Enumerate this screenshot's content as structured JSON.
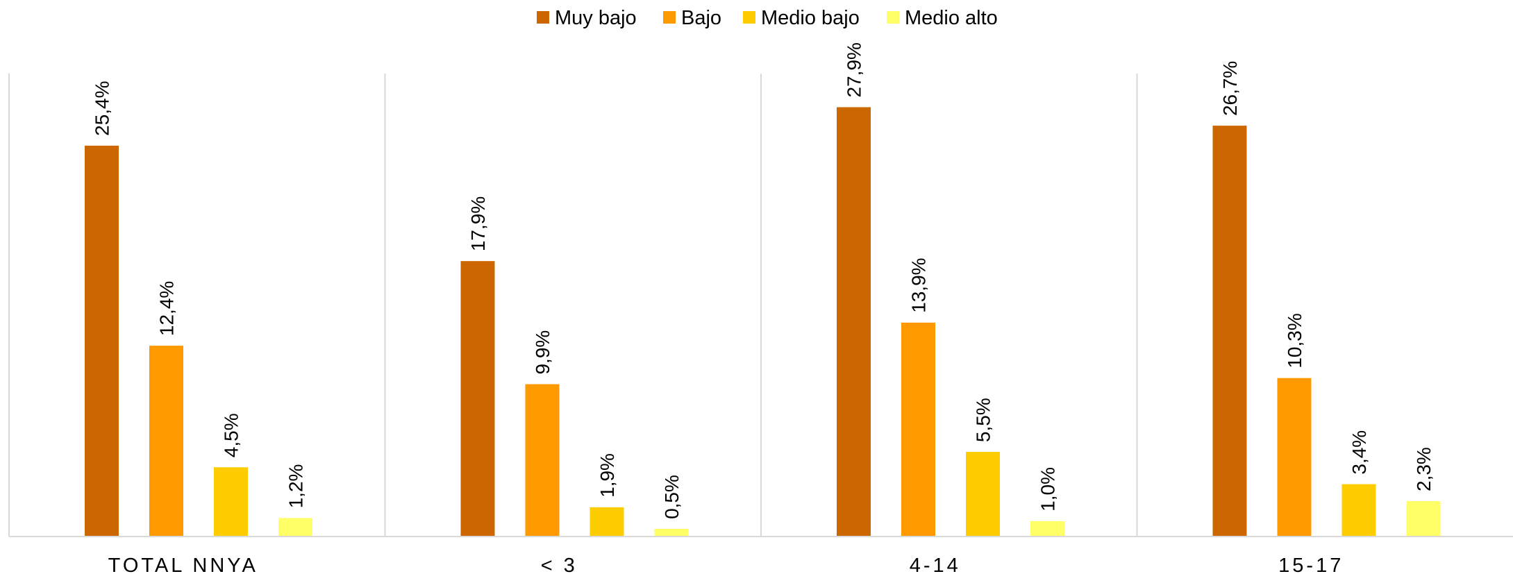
{
  "chart_data": {
    "type": "bar",
    "categories": [
      "TOTAL NNYA",
      "< 3",
      "4-14",
      "15-17"
    ],
    "series": [
      {
        "name": "Muy bajo",
        "color": "#CC6600",
        "values": [
          25.4,
          17.9,
          27.9,
          26.7
        ],
        "labels": [
          "25,4%",
          "17,9%",
          "27,9%",
          "26,7%"
        ]
      },
      {
        "name": "Bajo",
        "color": "#FF9900",
        "values": [
          12.4,
          9.9,
          13.9,
          10.3
        ],
        "labels": [
          "12,4%",
          "9,9%",
          "13,9%",
          "10,3%"
        ]
      },
      {
        "name": "Medio bajo",
        "color": "#FFCC00",
        "values": [
          4.5,
          1.9,
          5.5,
          3.4
        ],
        "labels": [
          "4,5%",
          "1,9%",
          "5,5%",
          "3,4%"
        ]
      },
      {
        "name": "Medio alto",
        "color": "#FFFF66",
        "values": [
          1.2,
          0.5,
          1.0,
          2.3
        ],
        "labels": [
          "1,2%",
          "0,5%",
          "1,0%",
          "2,3%"
        ]
      }
    ],
    "title": "",
    "xlabel": "",
    "ylabel": "",
    "ylim": [
      0,
      30
    ],
    "grid": false,
    "legend_position": "top-center",
    "separator_color": "#D9D9D9"
  }
}
